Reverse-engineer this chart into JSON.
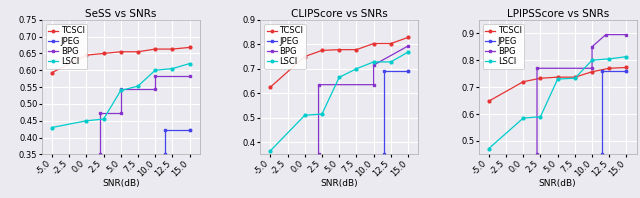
{
  "charts": [
    {
      "title": "SeSS vs SNRs",
      "xlabel": "SNR(dB)",
      "xlim": [
        -6.5,
        16.5
      ],
      "ylim": [
        0.35,
        0.75
      ],
      "yticks": [
        0.35,
        0.4,
        0.45,
        0.5,
        0.55,
        0.6,
        0.65,
        0.7,
        0.75
      ],
      "xticks": [
        -5.0,
        -2.5,
        0.0,
        2.5,
        5.0,
        7.5,
        10.0,
        12.5,
        15.0
      ],
      "series": [
        {
          "label": "TCSCI",
          "color": "#e63333",
          "marker": "o",
          "x": [
            -5,
            0,
            2.5,
            5,
            7.5,
            10,
            12.5,
            15
          ],
          "y": [
            0.593,
            0.645,
            0.65,
            0.655,
            0.655,
            0.663,
            0.663,
            0.668
          ]
        },
        {
          "label": "JPEG",
          "color": "#4444ee",
          "marker": "s",
          "x": [
            11.5,
            11.5,
            15,
            15
          ],
          "y": [
            0.35,
            0.423,
            0.423,
            0.423
          ]
        },
        {
          "label": "BPG",
          "color": "#8833cc",
          "marker": "s",
          "x": [
            2.0,
            2.0,
            5.0,
            5.0,
            10.0,
            10.0,
            15
          ],
          "y": [
            0.35,
            0.472,
            0.472,
            0.545,
            0.545,
            0.583,
            0.583
          ]
        },
        {
          "label": "LSCI",
          "color": "#00cccc",
          "marker": "o",
          "x": [
            -5,
            0,
            2.5,
            5,
            7.5,
            10,
            12.5,
            15
          ],
          "y": [
            0.43,
            0.45,
            0.455,
            0.54,
            0.553,
            0.6,
            0.605,
            0.62
          ]
        }
      ]
    },
    {
      "title": "CLIPScore vs SNRs",
      "xlabel": "SNR(dB)",
      "xlim": [
        -6.5,
        16.5
      ],
      "ylim": [
        0.35,
        0.9
      ],
      "yticks": [
        0.4,
        0.5,
        0.6,
        0.7,
        0.8,
        0.9
      ],
      "xticks": [
        -5.0,
        -2.5,
        0.0,
        2.5,
        5.0,
        7.5,
        10.0,
        12.5,
        15.0
      ],
      "series": [
        {
          "label": "TCSCI",
          "color": "#e63333",
          "marker": "o",
          "x": [
            -5,
            0,
            2.5,
            5,
            7.5,
            10,
            12.5,
            15
          ],
          "y": [
            0.625,
            0.75,
            0.775,
            0.778,
            0.778,
            0.803,
            0.803,
            0.828
          ]
        },
        {
          "label": "JPEG",
          "color": "#4444ee",
          "marker": "s",
          "x": [
            11.5,
            11.5,
            15,
            15
          ],
          "y": [
            0.35,
            0.69,
            0.69,
            0.69
          ]
        },
        {
          "label": "BPG",
          "color": "#8833cc",
          "marker": "s",
          "x": [
            2.0,
            2.0,
            10.0,
            10.0,
            15
          ],
          "y": [
            0.35,
            0.635,
            0.635,
            0.715,
            0.793
          ]
        },
        {
          "label": "LSCI",
          "color": "#00cccc",
          "marker": "o",
          "x": [
            -5,
            0,
            2.5,
            5,
            7.5,
            10,
            12.5,
            15
          ],
          "y": [
            0.365,
            0.51,
            0.515,
            0.665,
            0.7,
            0.728,
            0.728,
            0.768
          ]
        }
      ]
    },
    {
      "title": "LPIPSScore vs SNRs",
      "xlabel": "SNR(dB)",
      "xlim": [
        -6.5,
        16.5
      ],
      "ylim": [
        0.45,
        0.95
      ],
      "yticks": [
        0.5,
        0.6,
        0.7,
        0.8,
        0.9
      ],
      "xticks": [
        -5.0,
        -2.5,
        0.0,
        2.5,
        5.0,
        7.5,
        10.0,
        12.5,
        15.0
      ],
      "series": [
        {
          "label": "TCSCI",
          "color": "#e63333",
          "marker": "o",
          "x": [
            -5,
            0,
            2.5,
            5,
            7.5,
            10,
            12.5,
            15
          ],
          "y": [
            0.648,
            0.72,
            0.733,
            0.737,
            0.737,
            0.757,
            0.77,
            0.773
          ]
        },
        {
          "label": "JPEG",
          "color": "#4444ee",
          "marker": "s",
          "x": [
            11.5,
            11.5,
            15,
            15
          ],
          "y": [
            0.45,
            0.76,
            0.76,
            0.76
          ]
        },
        {
          "label": "BPG",
          "color": "#8833cc",
          "marker": "s",
          "x": [
            2.0,
            2.0,
            10.0,
            10.0,
            12.0,
            15
          ],
          "y": [
            0.45,
            0.77,
            0.77,
            0.85,
            0.895,
            0.895
          ]
        },
        {
          "label": "LSCI",
          "color": "#00cccc",
          "marker": "o",
          "x": [
            -5,
            0,
            2.5,
            5,
            7.5,
            10,
            12.5,
            15
          ],
          "y": [
            0.472,
            0.585,
            0.59,
            0.73,
            0.733,
            0.8,
            0.805,
            0.813
          ]
        }
      ]
    }
  ],
  "bg_color": "#eaeaf0",
  "grid_color": "#ffffff",
  "legend_fontsize": 6.0,
  "title_fontsize": 7.5,
  "tick_fontsize": 6.0,
  "label_fontsize": 6.5
}
